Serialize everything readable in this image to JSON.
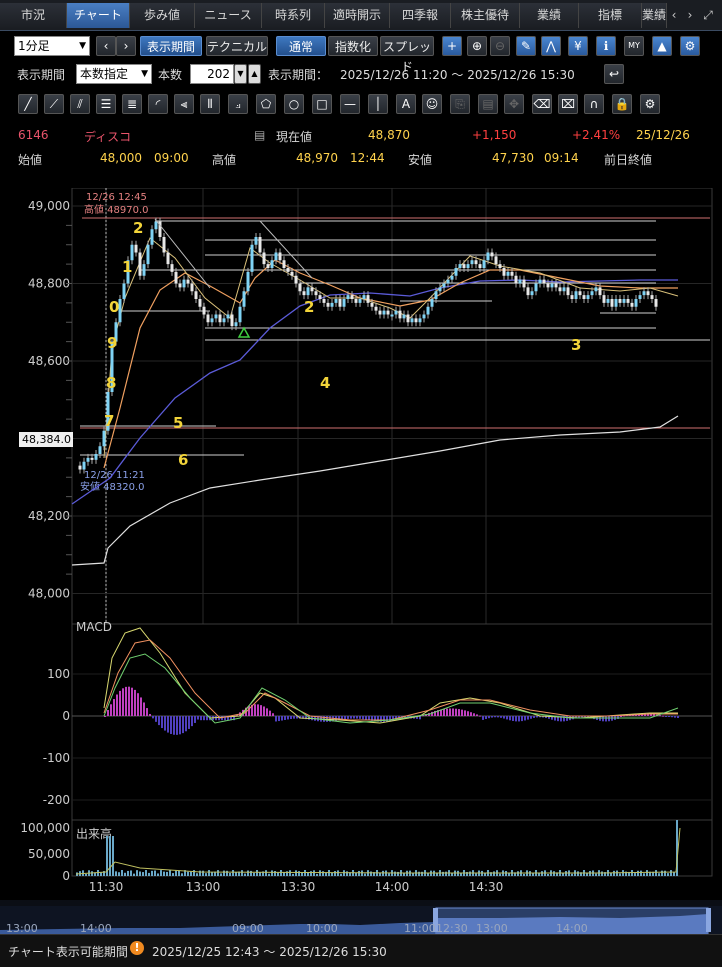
{
  "tabs": [
    {
      "label": "市況"
    },
    {
      "label": "チャート"
    },
    {
      "label": "歩み値"
    },
    {
      "label": "ニュース"
    },
    {
      "label": "時系列"
    },
    {
      "label": "適時開示"
    },
    {
      "label": "四季報"
    },
    {
      "label": "株主優待"
    },
    {
      "label": "業績"
    },
    {
      "label": "指標"
    },
    {
      "label": "業績"
    }
  ],
  "toolbar1": {
    "interval": "1分足",
    "period_button": "表示期間",
    "technical_button": "テクニカル",
    "normal_button": "通常",
    "index_button": "指数化",
    "spread_button": "スプレッド"
  },
  "toolbar2": {
    "period_label": "表示期間",
    "period_mode": "本数指定",
    "count_label": "本数",
    "count_value": "202",
    "range_label": "表示期間：",
    "range_value": "2025/12/26 11:20 ～ 2025/12/26 15:30"
  },
  "quote": {
    "code": "6146",
    "name": "ディスコ",
    "current_label": "現在値",
    "current_value": "48,870",
    "change": "+1,150",
    "change_pct": "+2.41%",
    "date": "25/12/26",
    "open_label": "始値",
    "open_value": "48,000",
    "open_time": "09:00",
    "high_label": "高値",
    "high_value": "48,970",
    "high_time": "12:44",
    "low_label": "安値",
    "low_value": "47,730",
    "low_time": "09:14",
    "prev_close_label": "前日終値"
  },
  "chart": {
    "price_ticks": [
      "49,000",
      "48,800",
      "48,600",
      "48,400",
      "48,200",
      "48,000"
    ],
    "price_tick_values": [
      49000,
      48800,
      48600,
      48400,
      48200,
      48000
    ],
    "price_marker": "48,384.0",
    "high_annotation_time": "12/26 12:45",
    "high_annotation": "高値 48970.0",
    "low_annotation_time": "12/26 11:21",
    "low_annotation": "安値 48320.0",
    "wave_labels": [
      "0",
      "1",
      "2",
      "9",
      "8",
      "7",
      "5",
      "6",
      "2",
      "4",
      "3"
    ],
    "macd_label": "MACD",
    "macd_ticks": [
      "100",
      "0",
      "-100",
      "-200"
    ],
    "volume_label": "出来高",
    "volume_ticks": [
      "100,000",
      "50,000",
      "0"
    ],
    "time_ticks": [
      "11:30",
      "13:00",
      "13:30",
      "14:00",
      "14:30"
    ],
    "overview_ticks": [
      "13:00",
      "14:00",
      "09:00",
      "10:00",
      "11:00",
      "12:30",
      "13:00",
      "14:00"
    ],
    "colors": {
      "up": "#7fd3f5",
      "down": "#e8e8e8",
      "macd_pos": "#c040c0",
      "macd_neg": "#5040c0",
      "accent": "#3e78c0"
    }
  },
  "footer": {
    "label": "チャート表示可能期間",
    "range": "2025/12/25 12:43 ～ 2025/12/26 15:30"
  }
}
